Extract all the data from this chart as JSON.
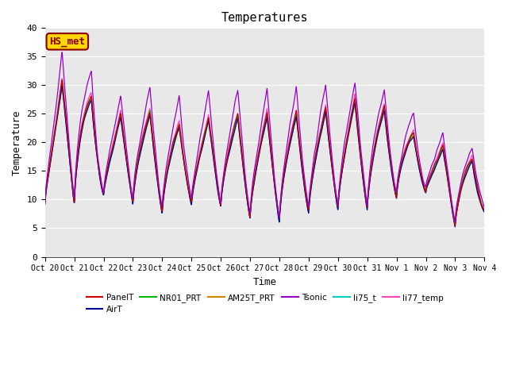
{
  "title": "Temperatures",
  "xlabel": "Time",
  "ylabel": "Temperature",
  "ylim": [
    0,
    40
  ],
  "yticks": [
    0,
    5,
    10,
    15,
    20,
    25,
    30,
    35,
    40
  ],
  "annotation_text": "HS_met",
  "annotation_color": "#8B0000",
  "annotation_bg": "#FFD700",
  "series_colors": {
    "PanelT": "#CC0000",
    "AirT": "#000099",
    "NR01_PRT": "#00BB00",
    "AM25T_PRT": "#CC8800",
    "Tsonic": "#9900CC",
    "li75_t": "#00CCCC",
    "li77_temp": "#FF44BB"
  },
  "xtick_labels": [
    "Oct 20",
    "Oct 21",
    "Oct 22",
    "Oct 23",
    "Oct 24",
    "Oct 25",
    "Oct 26",
    "Oct 27",
    "Oct 28",
    "Oct 29",
    "Oct 30",
    "Oct 31",
    "Nov 1",
    "Nov 2",
    "Nov 3",
    "Nov 4"
  ],
  "background_color": "#E8E8E8",
  "figure_bg": "#FFFFFF",
  "font_family": "monospace",
  "day_maxima": [
    24.0,
    36.0,
    22.5,
    27.0,
    24.5,
    22.5,
    26.0,
    24.5,
    26.0,
    25.0,
    27.0,
    28.0,
    25.0,
    19.5,
    19.5,
    15.5
  ],
  "day_minima": [
    9.5,
    9.5,
    11.0,
    9.5,
    8.0,
    9.5,
    9.0,
    7.0,
    6.5,
    8.0,
    8.5,
    8.5,
    10.5,
    11.5,
    5.5,
    8.0
  ],
  "tsonic_extra_peaks": [
    2.0,
    3.0,
    2.5,
    1.0,
    2.5,
    3.5,
    2.0,
    1.5,
    2.0,
    2.5,
    1.0,
    0.5,
    1.5,
    2.0,
    0.5,
    0.5
  ]
}
